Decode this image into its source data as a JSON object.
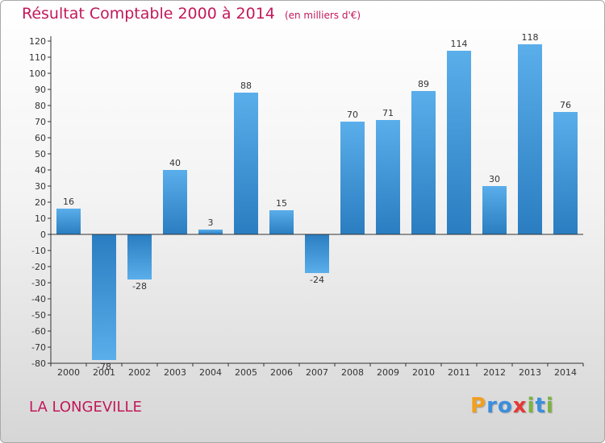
{
  "title": "Résultat Comptable 2000 à 2014",
  "subtitle": "(en milliers d'€)",
  "commune": "LA LONGEVILLE",
  "logo": {
    "letters": [
      "P",
      "r",
      "o",
      "x",
      "i",
      "t",
      "i"
    ],
    "colors": [
      "#f0a020",
      "#3a8ede",
      "#3a8ede",
      "#e53935",
      "#7cb342",
      "#3a8ede",
      "#7cb342"
    ]
  },
  "colors": {
    "title": "#c2185b",
    "bar": "#3a93d6",
    "axis": "#333333"
  },
  "chart_data": {
    "type": "bar",
    "categories": [
      "2000",
      "2001",
      "2002",
      "2003",
      "2004",
      "2005",
      "2006",
      "2007",
      "2008",
      "2009",
      "2010",
      "2011",
      "2012",
      "2013",
      "2014"
    ],
    "values": [
      16,
      -78,
      -28,
      40,
      3,
      88,
      15,
      -24,
      70,
      71,
      89,
      114,
      30,
      118,
      76
    ],
    "ylim": [
      -80,
      120
    ],
    "yticks": [
      120,
      110,
      100,
      90,
      80,
      70,
      60,
      50,
      40,
      30,
      20,
      10,
      0,
      -10,
      -20,
      -30,
      -40,
      -50,
      -60,
      -70,
      -80
    ],
    "grid": false,
    "legend": "none"
  }
}
